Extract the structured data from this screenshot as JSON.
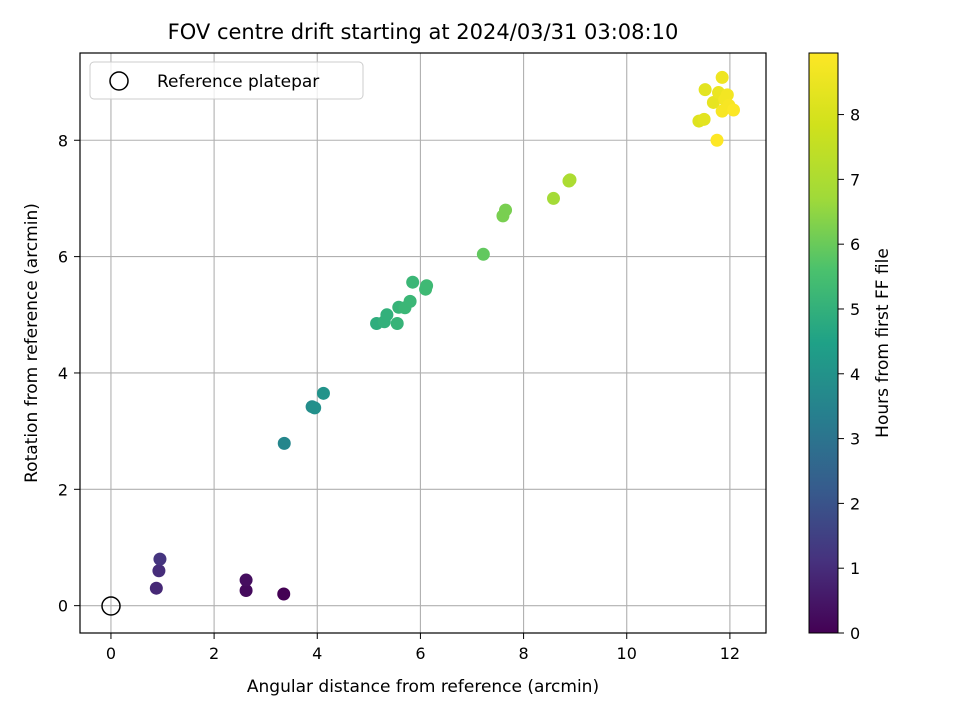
{
  "chart_data": {
    "type": "scatter",
    "title": "FOV centre drift starting at 2024/03/31 03:08:10",
    "xlabel": "Angular distance from reference (arcmin)",
    "ylabel": "Rotation from reference (arcmin)",
    "xlim": [
      -0.6,
      12.7
    ],
    "ylim": [
      -0.47,
      9.5
    ],
    "xticks": [
      0,
      2,
      4,
      6,
      8,
      10,
      12
    ],
    "yticks": [
      0,
      2,
      4,
      6,
      8
    ],
    "grid": true,
    "legend": {
      "placement": "top-left",
      "entries": [
        {
          "label": "Reference platepar",
          "marker": "open-circle"
        }
      ]
    },
    "reference": {
      "x": 0,
      "y": 0
    },
    "colorbar": {
      "label": "Hours from first FF file",
      "colormap": "viridis",
      "range": [
        0,
        8.95
      ],
      "ticks": [
        0,
        1,
        2,
        3,
        4,
        5,
        6,
        7,
        8
      ]
    },
    "points": [
      {
        "x": 3.35,
        "y": 0.2,
        "hours": 0.0
      },
      {
        "x": 2.62,
        "y": 0.26,
        "hours": 0.2
      },
      {
        "x": 2.62,
        "y": 0.44,
        "hours": 0.3
      },
      {
        "x": 0.88,
        "y": 0.3,
        "hours": 0.9
      },
      {
        "x": 0.93,
        "y": 0.6,
        "hours": 1.0
      },
      {
        "x": 0.95,
        "y": 0.8,
        "hours": 1.2
      },
      {
        "x": 3.36,
        "y": 2.79,
        "hours": 3.6
      },
      {
        "x": 3.9,
        "y": 3.42,
        "hours": 3.8
      },
      {
        "x": 3.95,
        "y": 3.4,
        "hours": 3.9
      },
      {
        "x": 4.12,
        "y": 3.65,
        "hours": 4.0
      },
      {
        "x": 5.15,
        "y": 4.85,
        "hours": 4.9
      },
      {
        "x": 5.3,
        "y": 4.88,
        "hours": 5.0
      },
      {
        "x": 5.35,
        "y": 5.0,
        "hours": 5.0
      },
      {
        "x": 5.55,
        "y": 4.85,
        "hours": 5.1
      },
      {
        "x": 5.58,
        "y": 5.13,
        "hours": 5.1
      },
      {
        "x": 5.7,
        "y": 5.12,
        "hours": 5.2
      },
      {
        "x": 5.8,
        "y": 5.23,
        "hours": 5.2
      },
      {
        "x": 5.85,
        "y": 5.56,
        "hours": 5.2
      },
      {
        "x": 6.1,
        "y": 5.44,
        "hours": 5.3
      },
      {
        "x": 6.12,
        "y": 5.5,
        "hours": 5.3
      },
      {
        "x": 7.22,
        "y": 6.04,
        "hours": 5.9
      },
      {
        "x": 7.6,
        "y": 6.7,
        "hours": 6.2
      },
      {
        "x": 7.65,
        "y": 6.8,
        "hours": 6.2
      },
      {
        "x": 8.58,
        "y": 7.0,
        "hours": 6.8
      },
      {
        "x": 8.88,
        "y": 7.3,
        "hours": 7.0
      },
      {
        "x": 8.9,
        "y": 7.32,
        "hours": 7.0
      },
      {
        "x": 11.4,
        "y": 8.33,
        "hours": 8.2
      },
      {
        "x": 11.5,
        "y": 8.36,
        "hours": 8.3
      },
      {
        "x": 11.52,
        "y": 8.87,
        "hours": 8.3
      },
      {
        "x": 11.68,
        "y": 8.65,
        "hours": 8.4
      },
      {
        "x": 11.78,
        "y": 8.82,
        "hours": 8.5
      },
      {
        "x": 11.85,
        "y": 9.08,
        "hours": 8.6
      },
      {
        "x": 11.9,
        "y": 8.7,
        "hours": 8.7
      },
      {
        "x": 11.95,
        "y": 8.78,
        "hours": 8.7
      },
      {
        "x": 11.98,
        "y": 8.6,
        "hours": 8.8
      },
      {
        "x": 11.85,
        "y": 8.5,
        "hours": 8.8
      },
      {
        "x": 12.07,
        "y": 8.52,
        "hours": 8.9
      },
      {
        "x": 11.75,
        "y": 8.0,
        "hours": 8.95
      }
    ]
  }
}
